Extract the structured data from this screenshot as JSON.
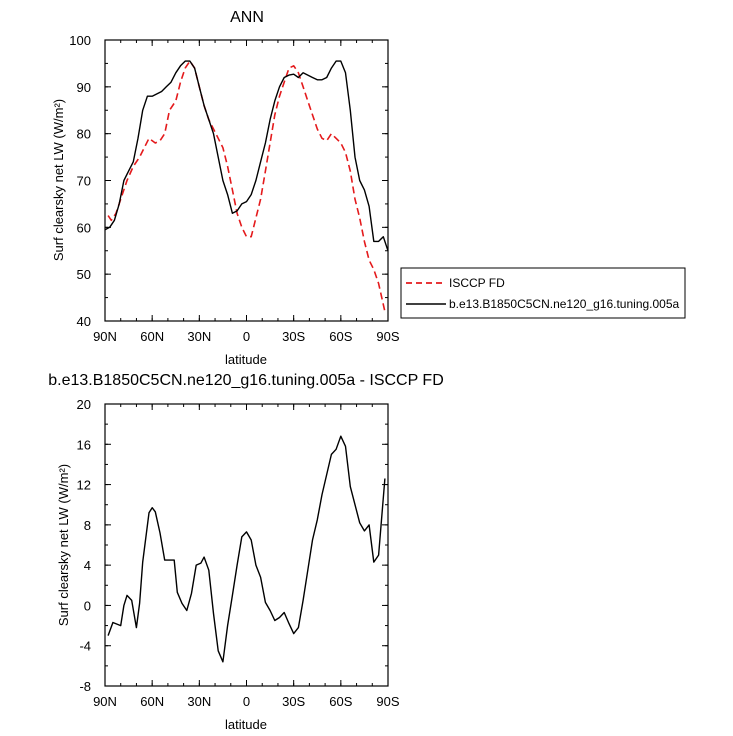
{
  "chart_data": [
    {
      "type": "line",
      "title": "ANN",
      "xlabel": "latitude",
      "ylabel": "Surf clearsky net LW (W/m²)",
      "x_tick_labels": [
        "90N",
        "60N",
        "30N",
        "0",
        "30S",
        "60S",
        "90S"
      ],
      "x_ticks": [
        -90,
        -60,
        -30,
        0,
        30,
        60,
        90
      ],
      "xlim": [
        -90,
        90
      ],
      "ylim": [
        40,
        100
      ],
      "y_ticks": [
        40,
        50,
        60,
        70,
        80,
        90,
        100
      ],
      "legend_position": "outside-right",
      "series": [
        {
          "name": "ISCCP FD",
          "color": "#e41a1c",
          "dash": true,
          "x": [
            -88,
            -86,
            -83,
            -80,
            -76,
            -72,
            -68,
            -65,
            -62,
            -58,
            -55,
            -52,
            -49,
            -45,
            -42,
            -39,
            -36,
            -33,
            -30,
            -27,
            -24,
            -21,
            -18,
            -15,
            -12,
            -9,
            -6,
            -3,
            0,
            3,
            6,
            9,
            12,
            15,
            18,
            21,
            24,
            27,
            30,
            33,
            36,
            39,
            42,
            45,
            48,
            51,
            54,
            57,
            60,
            63,
            66,
            69,
            72,
            75,
            78,
            81,
            84,
            88
          ],
          "y": [
            62.5,
            61.5,
            63,
            66,
            70,
            73,
            75,
            77,
            79,
            78,
            78.5,
            80,
            85,
            87,
            91,
            94,
            95.5,
            94,
            90,
            86,
            83,
            81,
            79,
            77,
            73,
            68,
            63,
            60,
            58,
            58,
            62,
            66,
            72,
            78,
            84,
            88,
            91,
            94,
            94.5,
            93,
            90,
            87,
            84,
            81,
            79,
            78.5,
            80,
            79,
            78,
            76,
            72,
            66,
            62,
            57,
            53,
            51,
            48,
            42
          ]
        },
        {
          "name": "b.e13.B1850C5CN.ne120_g16.tuning.005a",
          "color": "#000000",
          "dash": false,
          "x": [
            -90,
            -87,
            -84,
            -81,
            -78,
            -75,
            -72,
            -69,
            -66,
            -63,
            -60,
            -57,
            -54,
            -51,
            -48,
            -45,
            -42,
            -39,
            -36,
            -33,
            -30,
            -27,
            -24,
            -21,
            -18,
            -15,
            -12,
            -9,
            -6,
            -3,
            0,
            3,
            6,
            9,
            12,
            15,
            18,
            21,
            24,
            27,
            30,
            33,
            36,
            39,
            42,
            45,
            48,
            51,
            54,
            57,
            60,
            63,
            66,
            69,
            72,
            75,
            78,
            81,
            84,
            87,
            90
          ],
          "y": [
            59.5,
            60,
            61.5,
            65,
            70,
            72,
            74,
            79,
            85,
            88,
            88,
            88.5,
            89,
            90,
            91,
            93,
            94.5,
            95.5,
            95.5,
            94,
            90,
            86,
            83,
            80,
            75,
            70,
            67,
            63,
            63.5,
            65,
            65.5,
            67,
            70,
            74,
            78,
            83,
            87,
            90,
            92,
            92.5,
            92.7,
            92,
            93,
            92.5,
            92,
            91.5,
            91.5,
            92,
            94,
            95.5,
            95.5,
            93,
            85,
            75,
            70,
            68,
            64.5,
            57,
            57,
            58,
            55
          ]
        }
      ]
    },
    {
      "type": "line",
      "title": "b.e13.B1850C5CN.ne120_g16.tuning.005a - ISCCP FD",
      "xlabel": "latitude",
      "ylabel": "Surf clearsky net LW (W/m²)",
      "x_tick_labels": [
        "90N",
        "60N",
        "30N",
        "0",
        "30S",
        "60S",
        "90S"
      ],
      "x_ticks": [
        -90,
        -60,
        -30,
        0,
        30,
        60,
        90
      ],
      "xlim": [
        -90,
        90
      ],
      "ylim": [
        -8,
        20
      ],
      "y_ticks": [
        -8,
        -4,
        0,
        4,
        8,
        12,
        16,
        20
      ],
      "series": [
        {
          "name": "",
          "color": "#000000",
          "dash": false,
          "x": [
            -88,
            -85,
            -80,
            -78,
            -76,
            -73,
            -70,
            -68,
            -66,
            -62,
            -60,
            -58,
            -55,
            -52,
            -49,
            -46,
            -44,
            -41,
            -38,
            -35,
            -32,
            -29,
            -27,
            -24,
            -21,
            -18,
            -15,
            -12,
            -9,
            -6,
            -3,
            0,
            3,
            6,
            9,
            12,
            15,
            18,
            21,
            24,
            27,
            30,
            33,
            36,
            39,
            42,
            45,
            48,
            51,
            54,
            57,
            60,
            63,
            66,
            69,
            72,
            75,
            78,
            81,
            84,
            88
          ],
          "y": [
            -3,
            -1.7,
            -2,
            0,
            1,
            0.5,
            -2.2,
            0.2,
            4.3,
            9.2,
            9.7,
            9.3,
            7.2,
            4.5,
            4.5,
            4.5,
            1.3,
            0.2,
            -0.5,
            1.2,
            4,
            4.2,
            4.8,
            3.5,
            -0.8,
            -4.5,
            -5.6,
            -2,
            1,
            4,
            6.8,
            7.3,
            6.5,
            4,
            2.8,
            0.3,
            -0.5,
            -1.5,
            -1.2,
            -0.7,
            -1.8,
            -2.8,
            -2.2,
            0.5,
            3.5,
            6.5,
            8.5,
            11,
            13,
            15,
            15.5,
            16.8,
            15.8,
            11.8,
            10,
            8.2,
            7.4,
            8,
            4.3,
            5,
            12.6
          ]
        }
      ]
    }
  ]
}
